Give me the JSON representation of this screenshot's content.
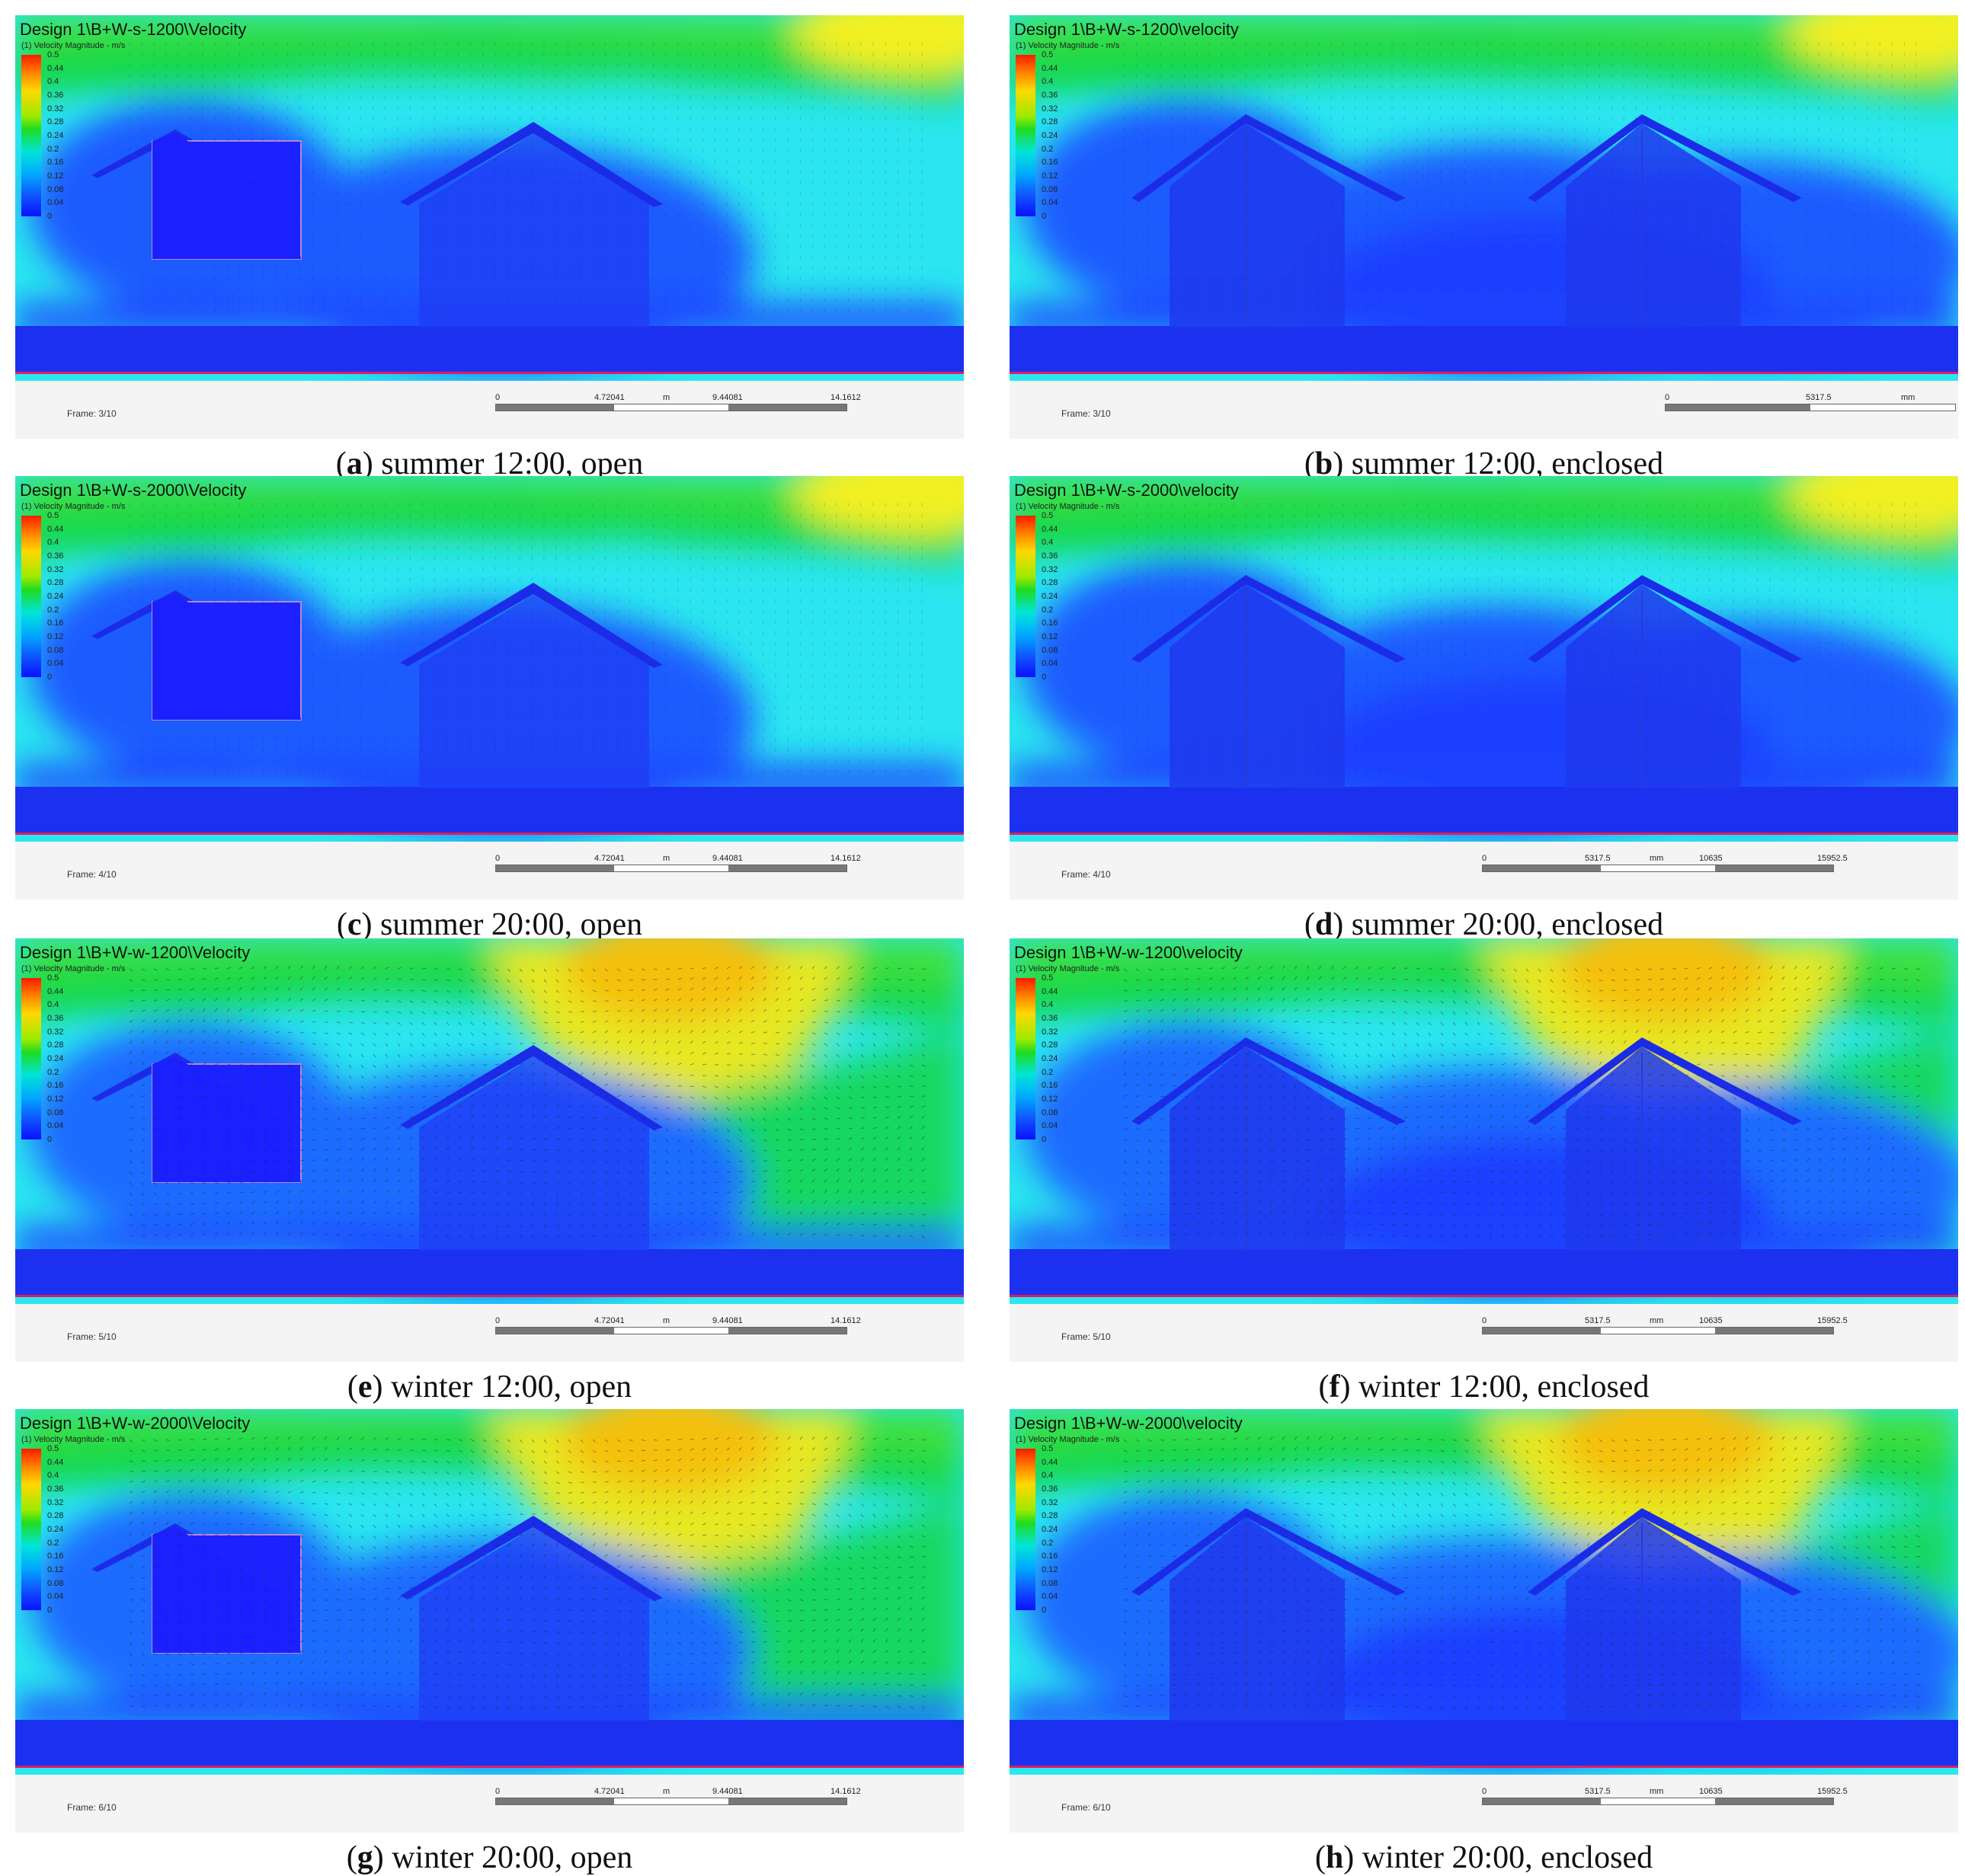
{
  "legend": {
    "header": "(1) Velocity Magnitude - m/s",
    "ticks": [
      "0.5",
      "0.44",
      "0.4",
      "0.36",
      "0.32",
      "0.28",
      "0.24",
      "0.2",
      "0.16",
      "0.12",
      "0.08",
      "0.04",
      "0"
    ]
  },
  "scale_open": [
    "0",
    "4.72041",
    "m",
    "9.44081",
    "14.1612"
  ],
  "scale_enclosed_short": [
    "0",
    "5317.5",
    "mm"
  ],
  "scale_enclosed_long": [
    "0",
    "5317.5",
    "mm",
    "10635",
    "15952.5"
  ],
  "panels": [
    {
      "title": "Design 1\\B+W-s-1200\\Velocity",
      "frame": "Frame: 3/10",
      "letter": "a",
      "caption": "summer 12:00, open"
    },
    {
      "title": "Design 1\\B+W-s-1200\\velocity",
      "frame": "Frame: 3/10",
      "letter": "b",
      "caption": "summer 12:00, enclosed"
    },
    {
      "title": "Design 1\\B+W-s-2000\\Velocity",
      "frame": "Frame: 4/10",
      "letter": "c",
      "caption": "summer 20:00, open"
    },
    {
      "title": "Design 1\\B+W-s-2000\\velocity",
      "frame": "Frame: 4/10",
      "letter": "d",
      "caption": "summer 20:00, enclosed"
    },
    {
      "title": "Design 1\\B+W-w-1200\\Velocity",
      "frame": "Frame: 5/10",
      "letter": "e",
      "caption": "winter 12:00, open"
    },
    {
      "title": "Design 1\\B+W-w-1200\\velocity",
      "frame": "Frame: 5/10",
      "letter": "f",
      "caption": "winter 12:00, enclosed"
    },
    {
      "title": "Design 1\\B+W-w-2000\\Velocity",
      "frame": "Frame: 6/10",
      "letter": "g",
      "caption": "winter 20:00, open"
    },
    {
      "title": "Design 1\\B+W-w-2000\\velocity",
      "frame": "Frame: 6/10",
      "letter": "h",
      "caption": "winter 20:00, enclosed"
    }
  ]
}
